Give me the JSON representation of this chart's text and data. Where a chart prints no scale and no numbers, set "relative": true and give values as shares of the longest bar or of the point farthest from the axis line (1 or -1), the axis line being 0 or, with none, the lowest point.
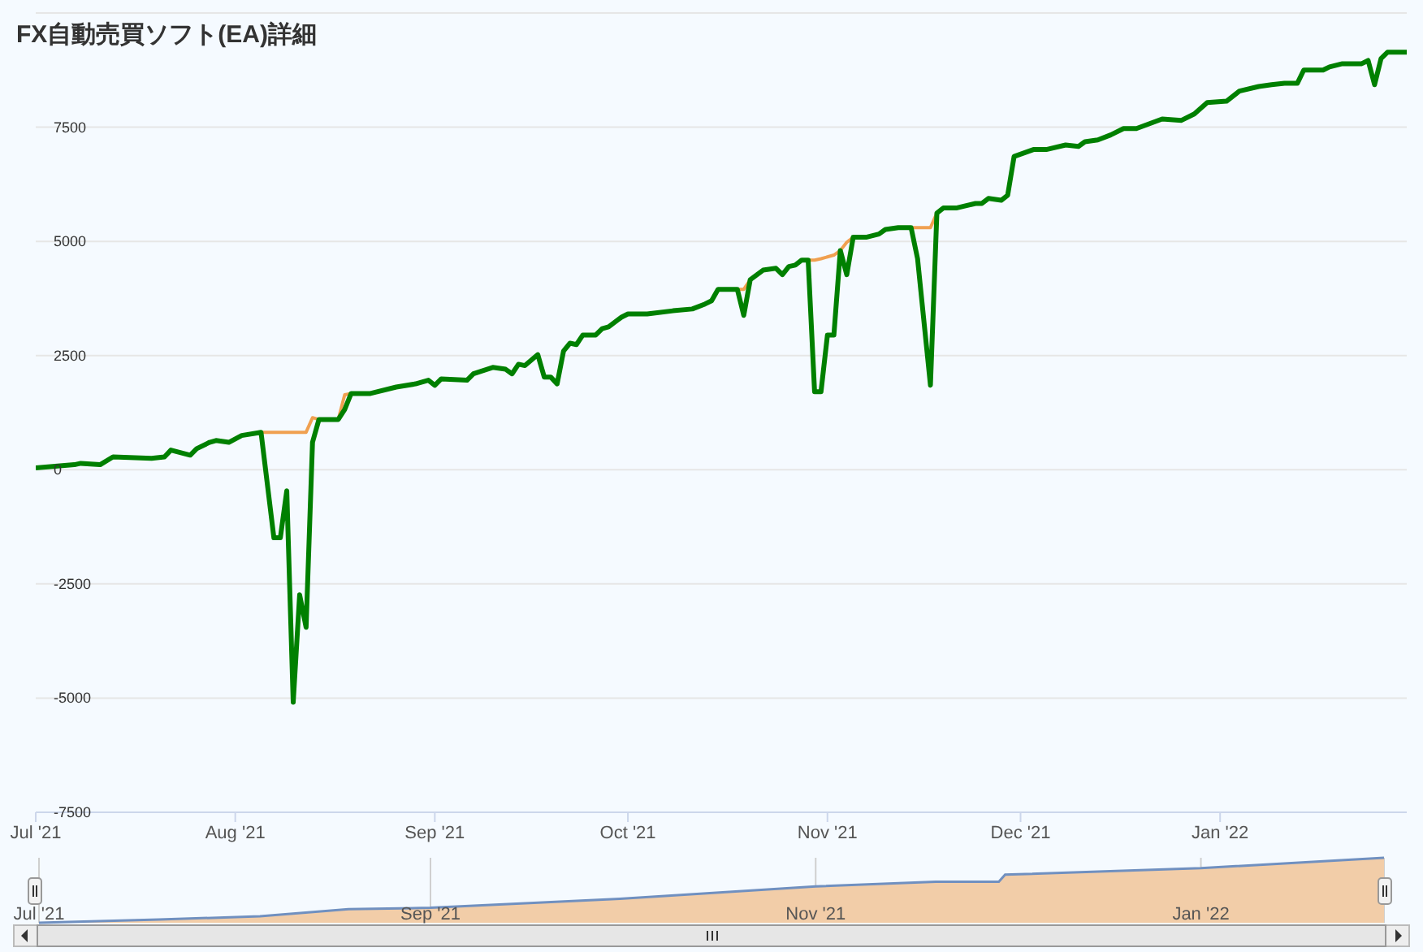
{
  "chart_data": [
    {
      "type": "line",
      "title": "FX自動売買ソフト(EA)詳細",
      "x": [
        "2021-07-01",
        "2021-07-07",
        "2021-07-08",
        "2021-07-11",
        "2021-07-13",
        "2021-07-19",
        "2021-07-21",
        "2021-07-22",
        "2021-07-25",
        "2021-07-26",
        "2021-07-28",
        "2021-07-29",
        "2021-07-31",
        "2021-08-02",
        "2021-08-05",
        "2021-08-07",
        "2021-08-08",
        "2021-08-09",
        "2021-08-10",
        "2021-08-11",
        "2021-08-12",
        "2021-08-13",
        "2021-08-14",
        "2021-08-17",
        "2021-08-18",
        "2021-08-19",
        "2021-08-22",
        "2021-08-26",
        "2021-08-29",
        "2021-08-31",
        "2021-09-01",
        "2021-09-02",
        "2021-09-06",
        "2021-09-07",
        "2021-09-10",
        "2021-09-12",
        "2021-09-13",
        "2021-09-14",
        "2021-09-15",
        "2021-09-17",
        "2021-09-18",
        "2021-09-19",
        "2021-09-20",
        "2021-09-21",
        "2021-09-22",
        "2021-09-23",
        "2021-09-24",
        "2021-09-26",
        "2021-09-27",
        "2021-09-28",
        "2021-09-30",
        "2021-10-01",
        "2021-10-04",
        "2021-10-08",
        "2021-10-11",
        "2021-10-13",
        "2021-10-14",
        "2021-10-15",
        "2021-10-18",
        "2021-10-19",
        "2021-10-20",
        "2021-10-22",
        "2021-10-24",
        "2021-10-25",
        "2021-10-26",
        "2021-10-27",
        "2021-10-28",
        "2021-10-29",
        "2021-10-30",
        "2021-10-31",
        "2021-11-01",
        "2021-11-02",
        "2021-11-03",
        "2021-11-04",
        "2021-11-05",
        "2021-11-07",
        "2021-11-09",
        "2021-11-10",
        "2021-11-12",
        "2021-11-14",
        "2021-11-15",
        "2021-11-17",
        "2021-11-18",
        "2021-11-19",
        "2021-11-21",
        "2021-11-24",
        "2021-11-25",
        "2021-11-26",
        "2021-11-28",
        "2021-11-29",
        "2021-11-30",
        "2021-12-03",
        "2021-12-05",
        "2021-12-08",
        "2021-12-10",
        "2021-12-11",
        "2021-12-13",
        "2021-12-15",
        "2021-12-17",
        "2021-12-19",
        "2021-12-23",
        "2021-12-26",
        "2021-12-28",
        "2021-12-30",
        "2022-01-02",
        "2022-01-04",
        "2022-01-07",
        "2022-01-09",
        "2022-01-11",
        "2022-01-13",
        "2022-01-14",
        "2022-01-17",
        "2022-01-18",
        "2022-01-20",
        "2022-01-23",
        "2022-01-24",
        "2022-01-25",
        "2022-01-26",
        "2022-01-27",
        "2022-01-30"
      ],
      "series": [
        {
          "color": "#f0a050",
          "values": [
            null,
            null,
            null,
            null,
            null,
            null,
            null,
            null,
            null,
            null,
            null,
            null,
            null,
            null,
            820,
            820,
            820,
            820,
            820,
            820,
            820,
            1140,
            1100,
            1100,
            1640,
            1670,
            null,
            null,
            null,
            null,
            null,
            null,
            null,
            null,
            null,
            null,
            null,
            null,
            null,
            null,
            null,
            null,
            null,
            null,
            null,
            null,
            null,
            null,
            null,
            null,
            null,
            null,
            null,
            null,
            null,
            null,
            null,
            null,
            3950,
            3950,
            4160,
            null,
            null,
            null,
            null,
            null,
            null,
            4590,
            4590,
            4620,
            4660,
            4700,
            4800,
            4980,
            5090,
            null,
            null,
            null,
            null,
            5300,
            5300,
            5300,
            5620,
            null,
            null,
            null,
            null,
            null,
            null,
            null,
            null,
            null,
            null,
            null,
            null,
            null,
            null,
            null,
            null,
            null,
            null,
            null,
            null,
            null,
            null,
            null,
            null,
            null,
            null,
            null,
            null,
            null,
            null,
            null,
            null,
            null,
            null,
            null,
            null,
            null
          ]
        },
        {
          "color": "#008000",
          "values": [
            40,
            110,
            140,
            110,
            280,
            250,
            280,
            430,
            320,
            460,
            600,
            640,
            600,
            750,
            820,
            -1490,
            -1490,
            -460,
            -5090,
            -2740,
            -3450,
            600,
            1100,
            1100,
            1320,
            1670,
            1670,
            1810,
            1880,
            1960,
            1850,
            1990,
            1960,
            2100,
            2240,
            2200,
            2100,
            2310,
            2280,
            2520,
            2030,
            2030,
            1880,
            2600,
            2770,
            2740,
            2950,
            2950,
            3090,
            3130,
            3340,
            3410,
            3410,
            3480,
            3520,
            3630,
            3700,
            3950,
            3950,
            3380,
            4160,
            4370,
            4410,
            4270,
            4450,
            4480,
            4590,
            4590,
            1710,
            1710,
            2950,
            2950,
            4800,
            4270,
            5090,
            5090,
            5160,
            5260,
            5300,
            5300,
            4620,
            1850,
            5620,
            5730,
            5730,
            5830,
            5830,
            5940,
            5900,
            6010,
            6860,
            7010,
            7010,
            7110,
            7080,
            7180,
            7220,
            7330,
            7470,
            7470,
            7680,
            7650,
            7790,
            8040,
            8070,
            8290,
            8390,
            8430,
            8460,
            8460,
            8750,
            8750,
            8820,
            8890,
            8890,
            8960,
            8430,
            9000,
            9140,
            9140
          ]
        }
      ],
      "xlim": [
        "2021-07-01",
        "2022-01-30"
      ],
      "xticks": [
        {
          "value": "2021-07-01",
          "label": "Jul '21"
        },
        {
          "value": "2021-08-01",
          "label": "Aug '21"
        },
        {
          "value": "2021-09-01",
          "label": "Sep '21"
        },
        {
          "value": "2021-10-01",
          "label": "Oct '21"
        },
        {
          "value": "2021-11-01",
          "label": "Nov '21"
        },
        {
          "value": "2021-12-01",
          "label": "Dec '21"
        },
        {
          "value": "2022-01-01",
          "label": "Jan '22"
        }
      ],
      "ylim": [
        -7500,
        10000
      ],
      "yticks": [
        -7500,
        -5000,
        -2500,
        0,
        2500,
        5000,
        7500,
        {
          "value": 10000,
          "label": null
        }
      ],
      "grid": "y"
    },
    {
      "type": "area",
      "relative": true,
      "color": "#f2cda8",
      "x": [
        "2021-07-01",
        "2021-07-20",
        "2021-08-05",
        "2021-08-19",
        "2021-09-01",
        "2021-10-01",
        "2021-11-01",
        "2021-11-20",
        "2021-11-30",
        "2021-12-01",
        "2022-01-01",
        "2022-01-30"
      ],
      "values": [
        0,
        0.05,
        0.1,
        0.21,
        0.23,
        0.37,
        0.56,
        0.63,
        0.63,
        0.74,
        0.84,
        1
      ],
      "xlim": [
        "2021-07-01",
        "2022-01-30"
      ],
      "xticks": [
        {
          "value": "2021-07-01",
          "label": "Jul '21"
        },
        {
          "value": "2021-09-01",
          "label": "Sep '21"
        },
        {
          "value": "2021-11-01",
          "label": "Nov '21"
        },
        {
          "value": "2022-01-01",
          "label": "Jan '22"
        }
      ],
      "grid": "x",
      "tick_labels": "x"
    }
  ]
}
